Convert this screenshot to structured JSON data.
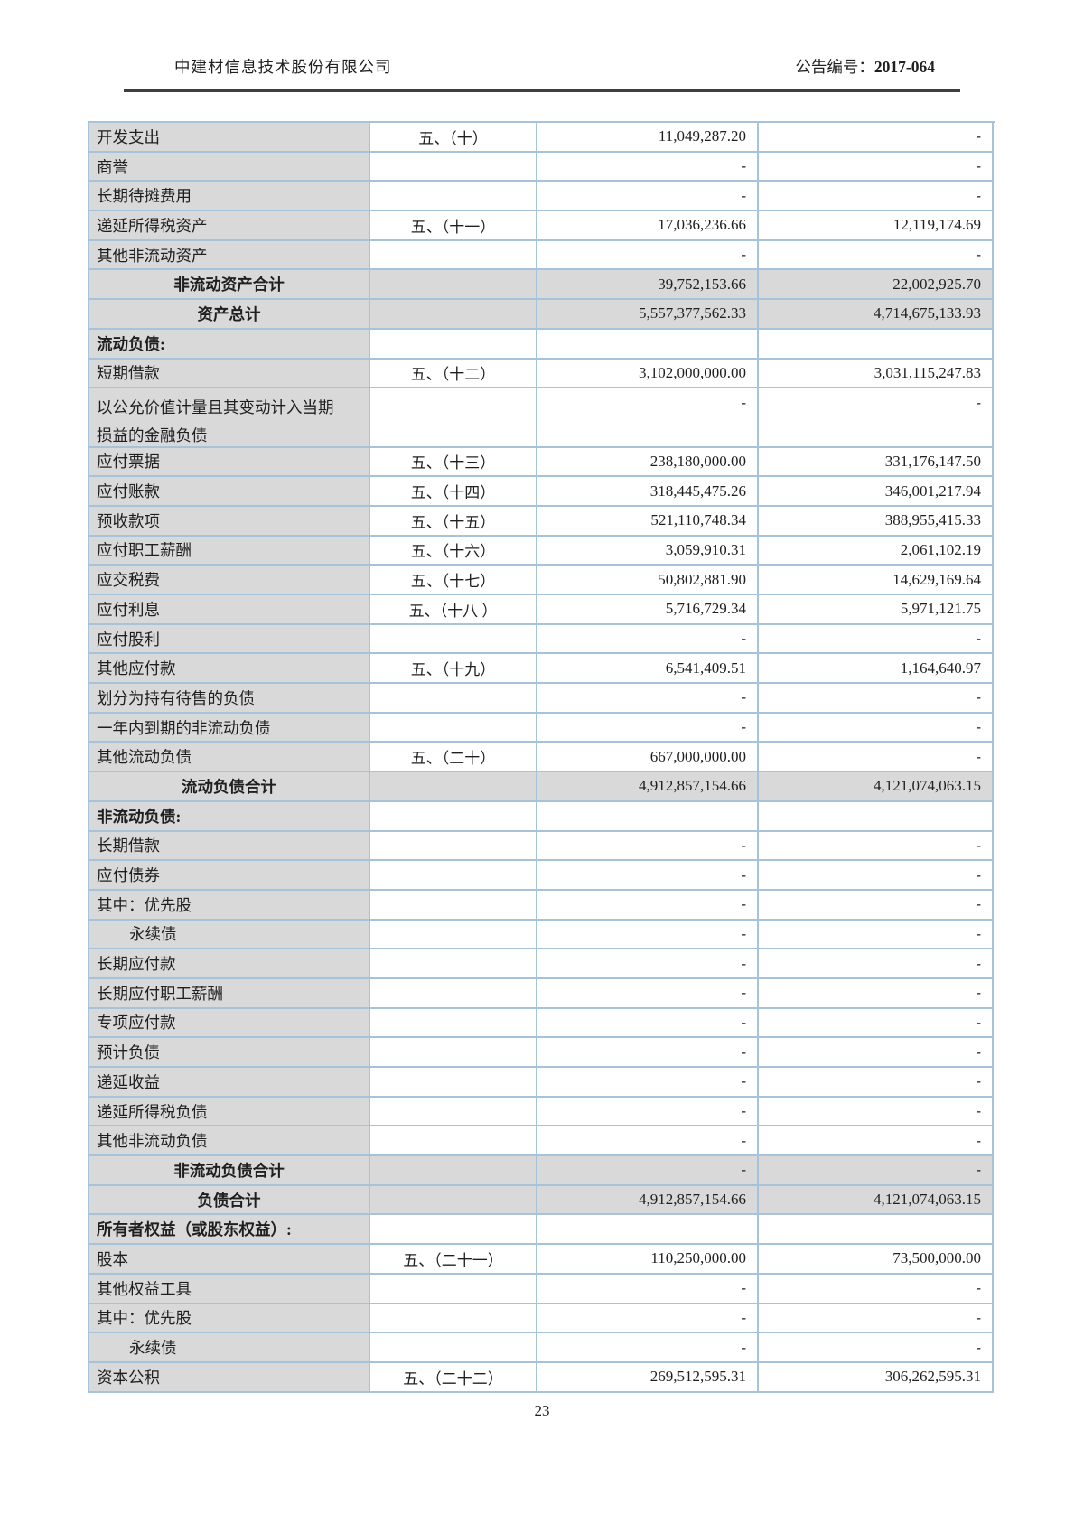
{
  "header": {
    "company": "中建材信息技术股份有限公司",
    "notice_label": "公告编号：",
    "notice_number": "2017-064"
  },
  "footer": {
    "page_number": "23"
  },
  "colors": {
    "table_border": "#a7c2db",
    "cell_shade": "#d9d9d9",
    "header_rule": "#3f3f3f",
    "text": "#1f1f1f"
  },
  "table": {
    "rows": [
      {
        "label": "开发支出",
        "note": "五、（十）",
        "cur": "11,049,287.20",
        "prior": "-",
        "type": "item"
      },
      {
        "label": "商誉",
        "note": "",
        "cur": "-",
        "prior": "-",
        "type": "item"
      },
      {
        "label": "长期待摊费用",
        "note": "",
        "cur": "-",
        "prior": "-",
        "type": "item"
      },
      {
        "label": "递延所得税资产",
        "note": "五、（十一）",
        "cur": "17,036,236.66",
        "prior": "12,119,174.69",
        "type": "item"
      },
      {
        "label": "其他非流动资产",
        "note": "",
        "cur": "-",
        "prior": "-",
        "type": "item"
      },
      {
        "label": "非流动资产合计",
        "note": "",
        "cur": "39,752,153.66",
        "prior": "22,002,925.70",
        "type": "total"
      },
      {
        "label": "资产总计",
        "note": "",
        "cur": "5,557,377,562.33",
        "prior": "4,714,675,133.93",
        "type": "total"
      },
      {
        "label": "流动负债:",
        "note": "",
        "cur": "",
        "prior": "",
        "type": "section"
      },
      {
        "label": "短期借款",
        "note": "五、（十二）",
        "cur": "3,102,000,000.00",
        "prior": "3,031,115,247.83",
        "type": "item"
      },
      {
        "label": "以公允价值计量且其变动计入当期\n损益的金融负债",
        "note": "",
        "cur": "-",
        "prior": "-",
        "type": "item",
        "tall": true
      },
      {
        "label": "应付票据",
        "note": "五、（十三）",
        "cur": "238,180,000.00",
        "prior": "331,176,147.50",
        "type": "item"
      },
      {
        "label": "应付账款",
        "note": "五、（十四）",
        "cur": "318,445,475.26",
        "prior": "346,001,217.94",
        "type": "item"
      },
      {
        "label": "预收款项",
        "note": "五、（十五）",
        "cur": "521,110,748.34",
        "prior": "388,955,415.33",
        "type": "item"
      },
      {
        "label": "应付职工薪酬",
        "note": "五、（十六）",
        "cur": "3,059,910.31",
        "prior": "2,061,102.19",
        "type": "item"
      },
      {
        "label": "应交税费",
        "note": "五、（十七）",
        "cur": "50,802,881.90",
        "prior": "14,629,169.64",
        "type": "item"
      },
      {
        "label": "应付利息",
        "note": "五、（十八 ）",
        "cur": "5,716,729.34",
        "prior": "5,971,121.75",
        "type": "item"
      },
      {
        "label": "应付股利",
        "note": "",
        "cur": "-",
        "prior": "-",
        "type": "item"
      },
      {
        "label": "其他应付款",
        "note": "五、（十九）",
        "cur": "6,541,409.51",
        "prior": "1,164,640.97",
        "type": "item"
      },
      {
        "label": "划分为持有待售的负债",
        "note": "",
        "cur": "-",
        "prior": "-",
        "type": "item"
      },
      {
        "label": "一年内到期的非流动负债",
        "note": "",
        "cur": "-",
        "prior": "-",
        "type": "item"
      },
      {
        "label": "其他流动负债",
        "note": "五、（二十）",
        "cur": "667,000,000.00",
        "prior": "-",
        "type": "item"
      },
      {
        "label": "流动负债合计",
        "note": "",
        "cur": "4,912,857,154.66",
        "prior": "4,121,074,063.15",
        "type": "total"
      },
      {
        "label": "非流动负债:",
        "note": "",
        "cur": "",
        "prior": "",
        "type": "section"
      },
      {
        "label": "长期借款",
        "note": "",
        "cur": "-",
        "prior": "-",
        "type": "item"
      },
      {
        "label": "应付债券",
        "note": "",
        "cur": "-",
        "prior": "-",
        "type": "item"
      },
      {
        "label": "其中：优先股",
        "note": "",
        "cur": "-",
        "prior": "-",
        "type": "item"
      },
      {
        "label": "永续债",
        "note": "",
        "cur": "-",
        "prior": "-",
        "type": "item",
        "indent": 1
      },
      {
        "label": "长期应付款",
        "note": "",
        "cur": "-",
        "prior": "-",
        "type": "item"
      },
      {
        "label": "长期应付职工薪酬",
        "note": "",
        "cur": "-",
        "prior": "-",
        "type": "item"
      },
      {
        "label": "专项应付款",
        "note": "",
        "cur": "-",
        "prior": "-",
        "type": "item"
      },
      {
        "label": "预计负债",
        "note": "",
        "cur": "-",
        "prior": "-",
        "type": "item"
      },
      {
        "label": "递延收益",
        "note": "",
        "cur": "-",
        "prior": "-",
        "type": "item"
      },
      {
        "label": "递延所得税负债",
        "note": "",
        "cur": "-",
        "prior": "-",
        "type": "item"
      },
      {
        "label": "其他非流动负债",
        "note": "",
        "cur": "-",
        "prior": "-",
        "type": "item"
      },
      {
        "label": "非流动负债合计",
        "note": "",
        "cur": "-",
        "prior": "-",
        "type": "total"
      },
      {
        "label": "负债合计",
        "note": "",
        "cur": "4,912,857,154.66",
        "prior": "4,121,074,063.15",
        "type": "total"
      },
      {
        "label": "所有者权益（或股东权益）:",
        "note": "",
        "cur": "",
        "prior": "",
        "type": "section"
      },
      {
        "label": "股本",
        "note": "五、（二十一）",
        "cur": "110,250,000.00",
        "prior": "73,500,000.00",
        "type": "item"
      },
      {
        "label": "其他权益工具",
        "note": "",
        "cur": "-",
        "prior": "-",
        "type": "item"
      },
      {
        "label": "其中：优先股",
        "note": "",
        "cur": "-",
        "prior": "-",
        "type": "item"
      },
      {
        "label": "永续债",
        "note": "",
        "cur": "-",
        "prior": "-",
        "type": "item",
        "indent": 1
      },
      {
        "label": "资本公积",
        "note": "五、（二十二）",
        "cur": "269,512,595.31",
        "prior": "306,262,595.31",
        "type": "item"
      }
    ]
  }
}
